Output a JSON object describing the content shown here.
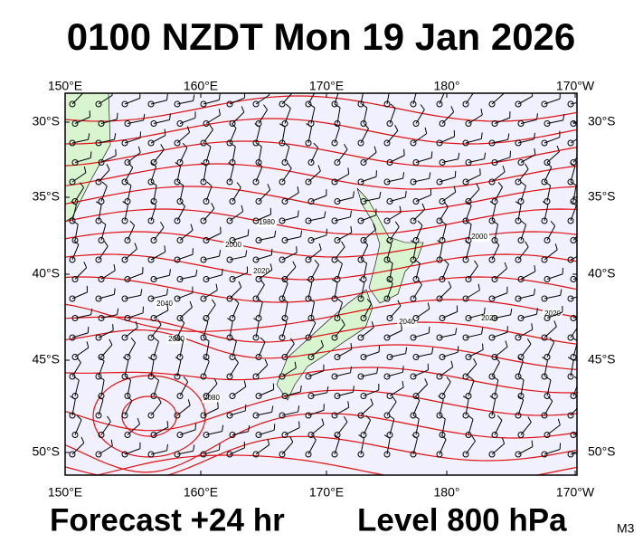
{
  "header": {
    "title": "0100 NZDT Mon 19 Jan 2026"
  },
  "map": {
    "top_labels": [
      "150°E",
      "160°E",
      "170°E",
      "180°",
      "170°W"
    ],
    "bottom_labels": [
      "150°E",
      "160°E",
      "170°E",
      "180°",
      "170°W"
    ],
    "left_labels": [
      "30°S",
      "35°S",
      "40°S",
      "45°S",
      "50°S"
    ],
    "right_labels": [
      "30°S",
      "35°S",
      "40°S",
      "45°S",
      "50°S"
    ],
    "contour_labels": [
      "1980",
      "2000",
      "2020",
      "2040",
      "2060",
      "2080",
      "2040",
      "2000",
      "2020",
      "2020"
    ]
  },
  "footer": {
    "forecast": "Forecast +24 hr",
    "level": "Level 800 hPa",
    "code": "M3"
  }
}
